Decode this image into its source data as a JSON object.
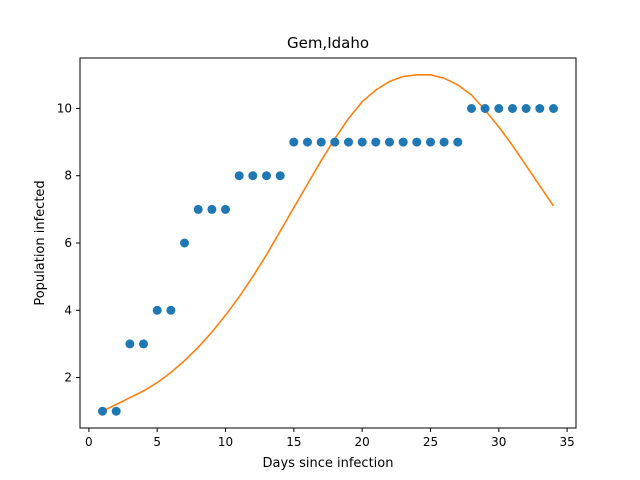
{
  "chart_data": {
    "type": "scatter",
    "title": "Gem,Idaho",
    "xlabel": "Days since infection",
    "ylabel": "Population infected",
    "xlim": [
      -0.65,
      35.65
    ],
    "ylim": [
      0.5,
      11.5
    ],
    "xticks": [
      0,
      5,
      10,
      15,
      20,
      25,
      30,
      35
    ],
    "yticks": [
      2,
      4,
      6,
      8,
      10
    ],
    "grid": false,
    "series": [
      {
        "kind": "scatter",
        "color": "#1f77b4",
        "x": [
          1,
          2,
          3,
          4,
          5,
          6,
          7,
          8,
          9,
          10,
          11,
          12,
          13,
          14,
          15,
          16,
          17,
          18,
          19,
          20,
          21,
          22,
          23,
          24,
          25,
          26,
          27,
          28,
          29,
          30,
          31,
          32,
          33,
          34
        ],
        "y": [
          1,
          1,
          3,
          3,
          4,
          4,
          6,
          7,
          7,
          7,
          8,
          8,
          8,
          8,
          9,
          9,
          9,
          9,
          9,
          9,
          9,
          9,
          9,
          9,
          9,
          9,
          9,
          10,
          10,
          10,
          10,
          10,
          10,
          10
        ]
      },
      {
        "kind": "line",
        "color": "#ff7f0e",
        "x": [
          1,
          2,
          3,
          4,
          5,
          6,
          7,
          8,
          9,
          10,
          11,
          12,
          13,
          14,
          15,
          16,
          17,
          18,
          19,
          20,
          21,
          22,
          23,
          24,
          25,
          26,
          27,
          28,
          29,
          30,
          31,
          32,
          33,
          34
        ],
        "y": [
          1.0,
          1.2,
          1.4,
          1.6,
          1.85,
          2.15,
          2.5,
          2.9,
          3.35,
          3.85,
          4.4,
          5.0,
          5.65,
          6.35,
          7.05,
          7.75,
          8.45,
          9.1,
          9.7,
          10.2,
          10.55,
          10.8,
          10.95,
          11.0,
          11.0,
          10.9,
          10.7,
          10.4,
          9.95,
          9.45,
          8.9,
          8.3,
          7.7,
          7.1
        ]
      }
    ]
  }
}
